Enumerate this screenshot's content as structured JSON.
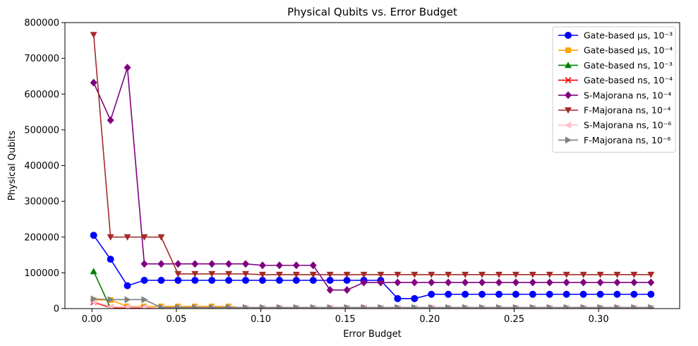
{
  "chart_data": {
    "type": "line",
    "title": "Physical Qubits vs. Error Budget",
    "xlabel": "Error Budget",
    "ylabel": "Physical Qubits",
    "xlim": [
      -0.016,
      0.348
    ],
    "ylim": [
      0,
      800000
    ],
    "xticks": [
      0.0,
      0.05,
      0.1,
      0.15,
      0.2,
      0.25,
      0.3
    ],
    "xtick_labels": [
      "0.00",
      "0.05",
      "0.10",
      "0.15",
      "0.20",
      "0.25",
      "0.30"
    ],
    "yticks": [
      0,
      100000,
      200000,
      300000,
      400000,
      500000,
      600000,
      700000,
      800000
    ],
    "ytick_labels": [
      "0",
      "100000",
      "200000",
      "300000",
      "400000",
      "500000",
      "600000",
      "700000",
      "800000"
    ],
    "legend_position": "top-right",
    "grid": false,
    "x": [
      0.001,
      0.011,
      0.021,
      0.031,
      0.041,
      0.051,
      0.061,
      0.071,
      0.081,
      0.091,
      0.101,
      0.111,
      0.121,
      0.131,
      0.141,
      0.151,
      0.161,
      0.171,
      0.181,
      0.191,
      0.201,
      0.211,
      0.221,
      0.231,
      0.241,
      0.251,
      0.261,
      0.271,
      0.281,
      0.291,
      0.301,
      0.311,
      0.321,
      0.331
    ],
    "series": [
      {
        "name": "Gate-based μs, 10⁻³",
        "color": "#0000ff",
        "marker": "circle",
        "values": [
          205000,
          138000,
          64000,
          79000,
          79000,
          79000,
          79000,
          79000,
          79000,
          79000,
          79000,
          79000,
          79000,
          79000,
          79000,
          79000,
          79000,
          79000,
          28000,
          28000,
          40000,
          40000,
          40000,
          40000,
          40000,
          40000,
          40000,
          40000,
          40000,
          40000,
          40000,
          40000,
          40000,
          40000
        ]
      },
      {
        "name": "Gate-based μs, 10⁻⁴",
        "color": "#ffa500",
        "marker": "square",
        "values": [
          24000,
          24000,
          6000,
          6000,
          6000,
          6000,
          6000,
          6000,
          6000,
          1000,
          1000,
          1000,
          1000,
          1000,
          1000,
          1000,
          1000,
          1000,
          1000,
          1000,
          1000,
          1000,
          1000,
          1000,
          1000,
          1000,
          1000,
          1000,
          1000,
          1000,
          1000,
          1000,
          1000,
          1000
        ]
      },
      {
        "name": "Gate-based ns, 10⁻³",
        "color": "#008000",
        "marker": "triangle-up",
        "values": [
          104000,
          1000,
          1000,
          1000,
          1000,
          1000,
          1000,
          1000,
          1000,
          1000,
          1000,
          1000,
          1000,
          1000,
          1000,
          1000,
          1000,
          1000,
          1000,
          1000,
          1000,
          1000,
          1000,
          1000,
          1000,
          1000,
          1000,
          1000,
          1000,
          1000,
          1000,
          1000,
          1000,
          1000
        ]
      },
      {
        "name": "Gate-based ns, 10⁻⁴",
        "color": "#ff0000",
        "marker": "x",
        "values": [
          18000,
          2000,
          1000,
          1000,
          500,
          500,
          500,
          500,
          500,
          500,
          500,
          500,
          500,
          500,
          500,
          500,
          500,
          500,
          500,
          500,
          500,
          500,
          500,
          500,
          500,
          500,
          500,
          500,
          500,
          500,
          500,
          500,
          500,
          500
        ]
      },
      {
        "name": "S-Majorana ns, 10⁻⁴",
        "color": "#800080",
        "marker": "diamond",
        "values": [
          632000,
          527000,
          674000,
          125000,
          125000,
          125000,
          125000,
          125000,
          125000,
          125000,
          121000,
          121000,
          121000,
          121000,
          52000,
          52000,
          73000,
          73000,
          73000,
          73000,
          73000,
          73000,
          73000,
          73000,
          73000,
          73000,
          73000,
          73000,
          73000,
          73000,
          73000,
          73000,
          73000,
          73000
        ]
      },
      {
        "name": "F-Majorana ns, 10⁻⁴",
        "color": "#a52a2a",
        "marker": "triangle-down",
        "values": [
          766000,
          200000,
          200000,
          200000,
          200000,
          97000,
          97000,
          97000,
          97000,
          97000,
          95000,
          95000,
          95000,
          95000,
          95000,
          95000,
          95000,
          95000,
          95000,
          95000,
          95000,
          95000,
          95000,
          95000,
          95000,
          95000,
          95000,
          95000,
          95000,
          95000,
          95000,
          95000,
          95000,
          95000
        ]
      },
      {
        "name": "S-Majorana ns, 10⁻⁶",
        "color": "#ffc0cb",
        "marker": "triangle-left",
        "values": [
          20000,
          5000,
          5000,
          4000,
          2000,
          2000,
          2000,
          2000,
          2000,
          2000,
          2000,
          2000,
          2000,
          2000,
          2000,
          2000,
          2000,
          2000,
          2000,
          2000,
          2000,
          2000,
          2000,
          2000,
          2000,
          2000,
          2000,
          2000,
          2000,
          2000,
          2000,
          2000,
          2000,
          2000
        ]
      },
      {
        "name": "F-Majorana ns, 10⁻⁶",
        "color": "#808080",
        "marker": "triangle-right",
        "values": [
          27000,
          25000,
          25000,
          25000,
          3000,
          3000,
          3000,
          3000,
          3000,
          3000,
          3000,
          3000,
          3000,
          3000,
          3000,
          3000,
          3000,
          3000,
          3000,
          3000,
          3000,
          3000,
          3000,
          3000,
          3000,
          3000,
          3000,
          3000,
          3000,
          3000,
          3000,
          3000,
          3000,
          3000
        ]
      }
    ]
  }
}
